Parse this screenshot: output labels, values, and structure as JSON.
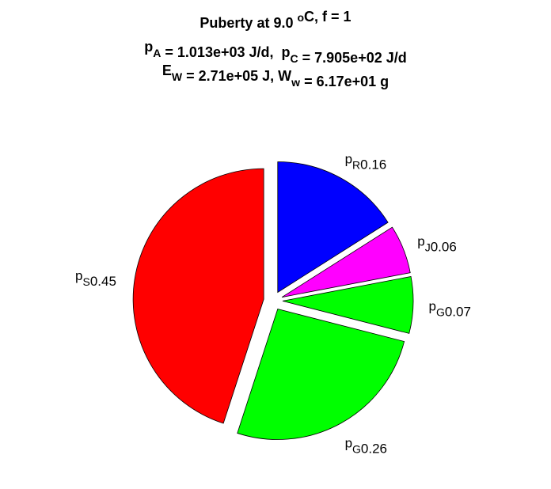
{
  "chart_data": {
    "type": "pie",
    "title": [
      [
        "Puberty at 9.0 ",
        {
          "sup": "o"
        },
        "C, f = 1"
      ],
      [
        "p",
        {
          "sub": "A"
        },
        " = 1.013e+03 J/d,  p",
        {
          "sub": "C"
        },
        " = 7.905e+02 J/d"
      ],
      [
        "E",
        {
          "sub": "W"
        },
        " = 2.71e+05 J, W",
        {
          "sub": "w"
        },
        " = 6.17e+01 g"
      ]
    ],
    "categories": [
      "p",
      "p",
      "p",
      "p",
      "p"
    ],
    "subscripts": [
      "R",
      "J",
      "G",
      "G",
      "S"
    ],
    "values": [
      0.16,
      0.06,
      0.07,
      0.26,
      0.45
    ],
    "colors": [
      "#0000ff",
      "#ff00ff",
      "#00ff00",
      "#00ff00",
      "#ff0000"
    ],
    "exploded": true
  }
}
